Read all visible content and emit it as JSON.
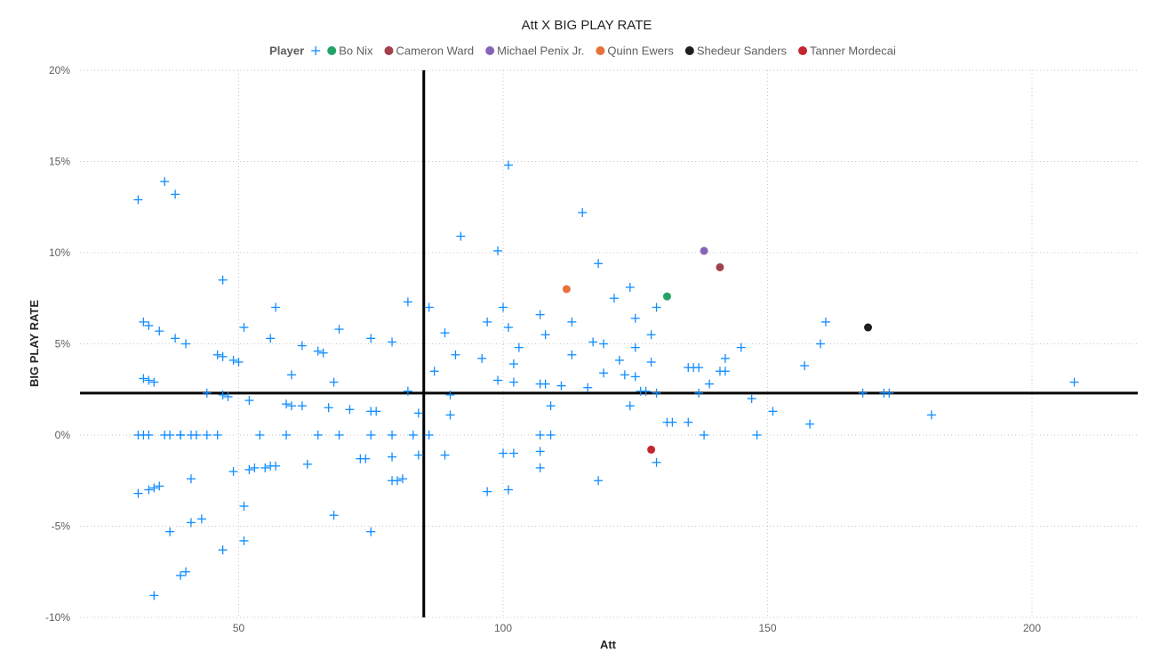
{
  "chart_data": {
    "type": "scatter",
    "title": "Att X BIG PLAY RATE",
    "xlabel": "Att",
    "ylabel": "BIG PLAY RATE",
    "xlim": [
      20,
      220
    ],
    "ylim": [
      -10,
      20
    ],
    "x_ticks": [
      50,
      100,
      150,
      200
    ],
    "x_tick_labels": [
      "50",
      "100",
      "150",
      "200"
    ],
    "y_ticks": [
      -10,
      -5,
      0,
      5,
      10,
      15,
      20
    ],
    "y_tick_labels": [
      "-10%",
      "-5%",
      "0%",
      "5%",
      "10%",
      "15%",
      "20%"
    ],
    "grid": true,
    "legend": {
      "title": "Player",
      "position": "top-center",
      "entries": [
        {
          "name": "",
          "marker": "cross",
          "color": "#118DFF"
        },
        {
          "name": "Bo Nix",
          "marker": "circle",
          "color": "#21A366"
        },
        {
          "name": "Cameron Ward",
          "marker": "circle",
          "color": "#A4404C"
        },
        {
          "name": "Michael Penix Jr.",
          "marker": "circle",
          "color": "#8764B8"
        },
        {
          "name": "Quinn Ewers",
          "marker": "circle",
          "color": "#E8713A"
        },
        {
          "name": "Shedeur Sanders",
          "marker": "circle",
          "color": "#1F1F1F"
        },
        {
          "name": "Tanner Mordecai",
          "marker": "circle",
          "color": "#C4262E"
        }
      ]
    },
    "reference_lines": {
      "x": 85,
      "y": 2.3
    },
    "series": [
      {
        "marker": "cross",
        "color": "#118DFF",
        "points": [
          [
            31,
            12.9
          ],
          [
            36,
            13.9
          ],
          [
            38,
            13.2
          ],
          [
            47,
            8.5
          ],
          [
            32,
            6.2
          ],
          [
            33,
            6.0
          ],
          [
            35,
            5.7
          ],
          [
            38,
            5.3
          ],
          [
            40,
            5.0
          ],
          [
            32,
            3.1
          ],
          [
            33,
            3.0
          ],
          [
            34,
            2.9
          ],
          [
            44,
            2.3
          ],
          [
            46,
            4.4
          ],
          [
            47,
            4.3
          ],
          [
            49,
            4.1
          ],
          [
            50,
            4.0
          ],
          [
            51,
            5.9
          ],
          [
            47,
            2.2
          ],
          [
            48,
            2.1
          ],
          [
            52,
            1.9
          ],
          [
            56,
            5.3
          ],
          [
            57,
            7.0
          ],
          [
            60,
            3.3
          ],
          [
            59,
            1.7
          ],
          [
            60,
            1.6
          ],
          [
            62,
            4.9
          ],
          [
            65,
            4.6
          ],
          [
            66,
            4.5
          ],
          [
            62,
            1.6
          ],
          [
            67,
            1.5
          ],
          [
            68,
            2.9
          ],
          [
            69,
            5.8
          ],
          [
            71,
            1.4
          ],
          [
            75,
            5.3
          ],
          [
            75,
            1.3
          ],
          [
            76,
            1.3
          ],
          [
            79,
            5.1
          ],
          [
            82,
            7.3
          ],
          [
            82,
            2.4
          ],
          [
            84,
            1.2
          ],
          [
            86,
            7.0
          ],
          [
            87,
            3.5
          ],
          [
            89,
            5.6
          ],
          [
            90,
            2.2
          ],
          [
            90,
            1.1
          ],
          [
            91,
            4.4
          ],
          [
            92,
            10.9
          ],
          [
            96,
            4.2
          ],
          [
            97,
            6.2
          ],
          [
            99,
            10.1
          ],
          [
            100,
            7.0
          ],
          [
            101,
            5.9
          ],
          [
            102,
            3.9
          ],
          [
            103,
            4.8
          ],
          [
            99,
            3.0
          ],
          [
            102,
            2.9
          ],
          [
            101,
            14.8
          ],
          [
            107,
            6.6
          ],
          [
            108,
            5.5
          ],
          [
            108,
            2.8
          ],
          [
            107,
            2.8
          ],
          [
            109,
            1.6
          ],
          [
            111,
            2.7
          ],
          [
            113,
            6.2
          ],
          [
            113,
            4.4
          ],
          [
            115,
            12.2
          ],
          [
            116,
            2.6
          ],
          [
            117,
            5.1
          ],
          [
            118,
            9.4
          ],
          [
            119,
            5.0
          ],
          [
            119,
            3.4
          ],
          [
            121,
            7.5
          ],
          [
            122,
            4.1
          ],
          [
            123,
            3.3
          ],
          [
            124,
            8.1
          ],
          [
            125,
            6.4
          ],
          [
            125,
            4.8
          ],
          [
            125,
            3.2
          ],
          [
            124,
            1.6
          ],
          [
            126,
            2.4
          ],
          [
            127,
            2.4
          ],
          [
            128,
            5.5
          ],
          [
            128,
            4.0
          ],
          [
            129,
            7.0
          ],
          [
            129,
            2.3
          ],
          [
            131,
            0.7
          ],
          [
            132,
            0.7
          ],
          [
            135,
            3.7
          ],
          [
            136,
            3.7
          ],
          [
            137,
            3.7
          ],
          [
            137,
            2.3
          ],
          [
            135,
            0.7
          ],
          [
            139,
            2.8
          ],
          [
            141,
            3.5
          ],
          [
            142,
            4.2
          ],
          [
            142,
            3.5
          ],
          [
            145,
            4.8
          ],
          [
            147,
            2.0
          ],
          [
            151,
            1.3
          ],
          [
            157,
            3.8
          ],
          [
            158,
            0.6
          ],
          [
            160,
            5.0
          ],
          [
            161,
            6.2
          ],
          [
            168,
            2.3
          ],
          [
            172,
            2.3
          ],
          [
            173,
            2.3
          ],
          [
            181,
            1.1
          ],
          [
            208,
            2.9
          ],
          [
            31,
            0
          ],
          [
            32,
            0
          ],
          [
            33,
            0
          ],
          [
            36,
            0
          ],
          [
            37,
            0
          ],
          [
            39,
            0
          ],
          [
            39,
            0
          ],
          [
            41,
            0
          ],
          [
            42,
            0
          ],
          [
            44,
            0
          ],
          [
            46,
            0
          ],
          [
            54,
            0
          ],
          [
            59,
            0
          ],
          [
            65,
            0
          ],
          [
            69,
            0
          ],
          [
            75,
            0
          ],
          [
            79,
            0
          ],
          [
            83,
            0
          ],
          [
            86,
            0
          ],
          [
            107,
            0
          ],
          [
            109,
            0
          ],
          [
            138,
            0
          ],
          [
            148,
            0
          ],
          [
            49,
            -2.0
          ],
          [
            52,
            -1.9
          ],
          [
            53,
            -1.8
          ],
          [
            55,
            -1.8
          ],
          [
            56,
            -1.7
          ],
          [
            57,
            -1.7
          ],
          [
            63,
            -1.6
          ],
          [
            73,
            -1.3
          ],
          [
            74,
            -1.3
          ],
          [
            79,
            -1.2
          ],
          [
            84,
            -1.1
          ],
          [
            89,
            -1.1
          ],
          [
            100,
            -1.0
          ],
          [
            102,
            -1.0
          ],
          [
            107,
            -0.9
          ],
          [
            107,
            -1.8
          ],
          [
            129,
            -1.5
          ],
          [
            31,
            -3.2
          ],
          [
            33,
            -3.0
          ],
          [
            34,
            -2.9
          ],
          [
            35,
            -2.8
          ],
          [
            41,
            -2.4
          ],
          [
            79,
            -2.5
          ],
          [
            80,
            -2.5
          ],
          [
            81,
            -2.4
          ],
          [
            97,
            -3.1
          ],
          [
            101,
            -3.0
          ],
          [
            118,
            -2.5
          ],
          [
            51,
            -3.9
          ],
          [
            68,
            -4.4
          ],
          [
            43,
            -4.6
          ],
          [
            41,
            -4.8
          ],
          [
            37,
            -5.3
          ],
          [
            75,
            -5.3
          ],
          [
            51,
            -5.8
          ],
          [
            47,
            -6.3
          ],
          [
            40,
            -7.5
          ],
          [
            39,
            -7.7
          ],
          [
            34,
            -8.8
          ]
        ]
      },
      {
        "name": "Bo Nix",
        "marker": "circle",
        "color": "#21A366",
        "points": [
          [
            131,
            7.6
          ]
        ]
      },
      {
        "name": "Cameron Ward",
        "marker": "circle",
        "color": "#A4404C",
        "points": [
          [
            141,
            9.2
          ]
        ]
      },
      {
        "name": "Michael Penix Jr.",
        "marker": "circle",
        "color": "#8764B8",
        "points": [
          [
            138,
            10.1
          ]
        ]
      },
      {
        "name": "Quinn Ewers",
        "marker": "circle",
        "color": "#E8713A",
        "points": [
          [
            112,
            8.0
          ]
        ]
      },
      {
        "name": "Shedeur Sanders",
        "marker": "circle",
        "color": "#1F1F1F",
        "points": [
          [
            169,
            5.9
          ]
        ]
      },
      {
        "name": "Tanner Mordecai",
        "marker": "circle",
        "color": "#C4262E",
        "points": [
          [
            128,
            -0.8
          ]
        ]
      }
    ]
  }
}
